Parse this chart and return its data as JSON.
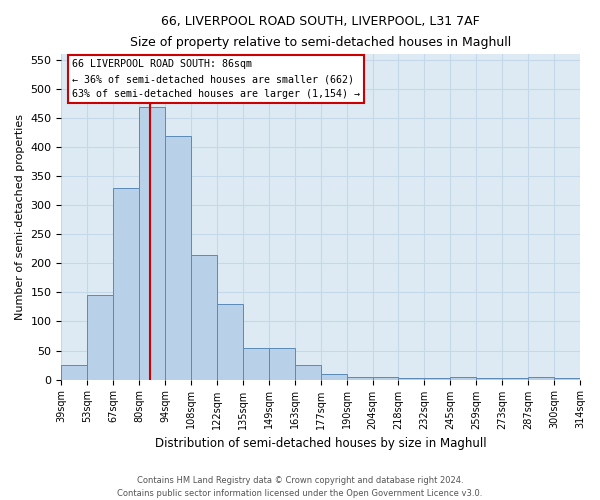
{
  "title": "66, LIVERPOOL ROAD SOUTH, LIVERPOOL, L31 7AF",
  "subtitle": "Size of property relative to semi-detached houses in Maghull",
  "xlabel": "Distribution of semi-detached houses by size in Maghull",
  "ylabel": "Number of semi-detached properties",
  "bin_labels": [
    "39sqm",
    "53sqm",
    "67sqm",
    "80sqm",
    "94sqm",
    "108sqm",
    "122sqm",
    "135sqm",
    "149sqm",
    "163sqm",
    "177sqm",
    "190sqm",
    "204sqm",
    "218sqm",
    "232sqm",
    "245sqm",
    "259sqm",
    "273sqm",
    "287sqm",
    "300sqm",
    "314sqm"
  ],
  "bar_heights": [
    25,
    145,
    330,
    470,
    420,
    215,
    130,
    55,
    55,
    25,
    10,
    5,
    5,
    3,
    3,
    5,
    3,
    3,
    5,
    3
  ],
  "bar_color": "#b8d0e8",
  "bar_edge_color": "#5a8ab8",
  "vline_color": "#cc0000",
  "vline_x": 2.93,
  "annotation_line1": "66 LIVERPOOL ROAD SOUTH: 86sqm",
  "annotation_line2": "← 36% of semi-detached houses are smaller (662)",
  "annotation_line3": "63% of semi-detached houses are larger (1,154) →",
  "grid_color": "#c5d8ea",
  "bg_color": "#ddeaf4",
  "ylim_max": 560,
  "yticks": [
    0,
    50,
    100,
    150,
    200,
    250,
    300,
    350,
    400,
    450,
    500,
    550
  ],
  "footnote1": "Contains HM Land Registry data © Crown copyright and database right 2024.",
  "footnote2": "Contains public sector information licensed under the Open Government Licence v3.0."
}
